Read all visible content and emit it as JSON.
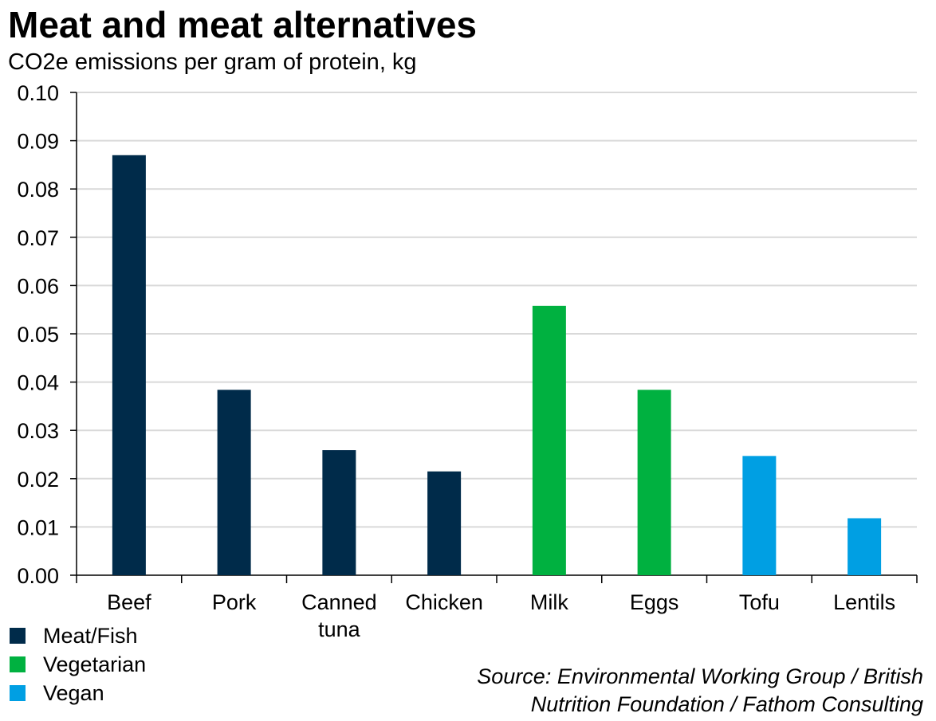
{
  "chart_data": {
    "type": "bar",
    "title": "Meat and meat alternatives",
    "subtitle": "CO2e emissions per gram of protein, kg",
    "categories": [
      [
        "Beef"
      ],
      [
        "Pork"
      ],
      [
        "Canned",
        "tuna"
      ],
      [
        "Chicken"
      ],
      [
        "Milk"
      ],
      [
        "Eggs"
      ],
      [
        "Tofu"
      ],
      [
        "Lentils"
      ]
    ],
    "values": [
      0.087,
      0.0384,
      0.0259,
      0.0215,
      0.0558,
      0.0384,
      0.0247,
      0.0118
    ],
    "groups": [
      "Meat/Fish",
      "Meat/Fish",
      "Meat/Fish",
      "Meat/Fish",
      "Vegetarian",
      "Vegetarian",
      "Vegan",
      "Vegan"
    ],
    "ylim": [
      0,
      0.1
    ],
    "yticks": [
      "0.00",
      "0.01",
      "0.02",
      "0.03",
      "0.04",
      "0.05",
      "0.06",
      "0.07",
      "0.08",
      "0.09",
      "0.10"
    ],
    "grid": true,
    "legend": {
      "placement": "bottom-left",
      "entries": [
        {
          "name": "Meat/Fish",
          "color": "#002b4a"
        },
        {
          "name": "Vegetarian",
          "color": "#00b140"
        },
        {
          "name": "Vegan",
          "color": "#009fe3"
        }
      ]
    },
    "source": [
      "Source: Environmental Working Group / British",
      "Nutrition Foundation / Fathom Consulting"
    ]
  }
}
